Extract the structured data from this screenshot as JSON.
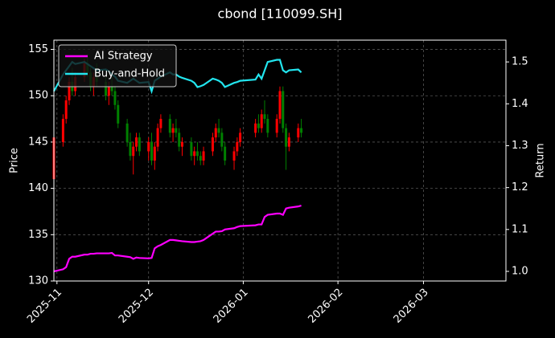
{
  "chart_data": {
    "type": "candlestick",
    "title": "cbond [110099.SH]",
    "ylabel": "Price",
    "y2label": "Return",
    "x": [
      "2025-10-31",
      "2025-11-03",
      "2025-11-04",
      "2025-11-05",
      "2025-11-06",
      "2025-11-07",
      "2025-11-10",
      "2025-11-11",
      "2025-11-12",
      "2025-11-13",
      "2025-11-14",
      "2025-11-17",
      "2025-11-18",
      "2025-11-19",
      "2025-11-20",
      "2025-11-21",
      "2025-11-24",
      "2025-11-25",
      "2025-11-26",
      "2025-11-27",
      "2025-11-28",
      "2025-12-01",
      "2025-12-02",
      "2025-12-03",
      "2025-12-04",
      "2025-12-05",
      "2025-12-08",
      "2025-12-09",
      "2025-12-10",
      "2025-12-11",
      "2025-12-12",
      "2025-12-15",
      "2025-12-16",
      "2025-12-17",
      "2025-12-18",
      "2025-12-19",
      "2025-12-22",
      "2025-12-23",
      "2025-12-24",
      "2025-12-25",
      "2025-12-26",
      "2025-12-29",
      "2025-12-30",
      "2025-12-31",
      "2026-01-05",
      "2026-01-06",
      "2026-01-07",
      "2026-01-08",
      "2026-01-09",
      "2026-01-12",
      "2026-01-13",
      "2026-01-14",
      "2026-01-15",
      "2026-01-16",
      "2026-01-19",
      "2026-01-20"
    ],
    "ohlc": {
      "up_color": "#ff0000",
      "down_color": "#008000",
      "open": [
        141,
        145,
        147.5,
        149.5,
        151.5,
        150.5,
        152,
        153.5,
        152.5,
        151,
        152,
        151.5,
        150,
        151,
        150.5,
        149,
        147,
        145,
        143.5,
        144.5,
        145.5,
        144,
        145,
        143,
        144.5,
        146.5,
        147.5,
        146,
        146.5,
        146,
        144.5,
        145,
        143.5,
        144,
        143.5,
        143,
        144,
        145.5,
        146.5,
        146,
        144.5,
        143,
        144,
        145,
        146,
        147,
        146.5,
        148,
        147.5,
        146,
        147.5,
        150.5,
        146.5,
        144.5,
        145.5,
        146.5
      ],
      "high": [
        146,
        148,
        150,
        152,
        153,
        152.5,
        154,
        154.5,
        153,
        152.5,
        153.5,
        152,
        151.5,
        152,
        151,
        149.5,
        147.5,
        146,
        145,
        146,
        146,
        145.5,
        146,
        145,
        147,
        148,
        148,
        147,
        147.5,
        146.5,
        145.5,
        145.5,
        144.5,
        145,
        144,
        144.5,
        146,
        147,
        147.5,
        146.5,
        145,
        144.5,
        145.5,
        146.5,
        147.5,
        148,
        148.5,
        149.5,
        148,
        148,
        151,
        151,
        147,
        146,
        147,
        147.5
      ],
      "low": [
        140,
        144.5,
        147,
        149,
        150,
        150,
        151.5,
        152,
        150.5,
        150,
        151,
        149.5,
        149,
        150,
        148.5,
        146.5,
        144.5,
        143,
        141.5,
        144,
        143.5,
        143,
        142.5,
        142,
        144,
        146,
        145.5,
        145,
        145.5,
        144,
        143.5,
        143,
        142.5,
        143,
        142.5,
        142.5,
        143.5,
        145,
        145.5,
        144,
        142.5,
        142,
        143.5,
        144.5,
        145.5,
        146,
        146,
        147,
        145.5,
        145.5,
        147,
        146,
        142,
        144,
        145,
        145.5
      ],
      "close": [
        145.5,
        147.5,
        149.5,
        151.5,
        150.5,
        152,
        153.5,
        152.5,
        151,
        152,
        151.5,
        150,
        151,
        150.5,
        149,
        147,
        145,
        143.5,
        144.5,
        145.5,
        144,
        145,
        143,
        144.5,
        146.5,
        147.5,
        146,
        146.5,
        146,
        144.5,
        145,
        143.5,
        144,
        143.5,
        143,
        144,
        145.5,
        146.5,
        146,
        144.5,
        143,
        144,
        145,
        146,
        147,
        146.5,
        148,
        147.5,
        146,
        147.5,
        150.5,
        146.5,
        144.5,
        145.5,
        146.5,
        146
      ]
    },
    "series": [
      {
        "name": "AI Strategy",
        "color": "#ff00ff",
        "axis": "y2",
        "values": [
          1.0,
          1.005,
          1.01,
          1.03,
          1.035,
          1.035,
          1.04,
          1.04,
          1.042,
          1.042,
          1.043,
          1.043,
          1.043,
          1.044,
          1.038,
          1.038,
          1.035,
          1.034,
          1.03,
          1.033,
          1.032,
          1.031,
          1.032,
          1.055,
          1.06,
          1.063,
          1.075,
          1.075,
          1.074,
          1.073,
          1.072,
          1.07,
          1.07,
          1.071,
          1.072,
          1.075,
          1.09,
          1.095,
          1.095,
          1.096,
          1.1,
          1.103,
          1.106,
          1.108,
          1.11,
          1.112,
          1.112,
          1.13,
          1.135,
          1.138,
          1.138,
          1.135,
          1.15,
          1.152,
          1.155,
          1.157
        ]
      },
      {
        "name": "Buy-and-Hold",
        "color": "#22e5ee",
        "axis": "y2",
        "values": [
          1.43,
          1.47,
          1.48,
          1.49,
          1.5,
          1.495,
          1.5,
          1.495,
          1.49,
          1.485,
          1.48,
          1.482,
          1.478,
          1.47,
          1.465,
          1.455,
          1.45,
          1.455,
          1.46,
          1.455,
          1.45,
          1.452,
          1.43,
          1.455,
          1.46,
          1.465,
          1.475,
          1.47,
          1.47,
          1.465,
          1.462,
          1.455,
          1.45,
          1.44,
          1.442,
          1.445,
          1.46,
          1.458,
          1.455,
          1.45,
          1.44,
          1.45,
          1.452,
          1.455,
          1.458,
          1.47,
          1.46,
          1.48,
          1.5,
          1.505,
          1.505,
          1.48,
          1.475,
          1.48,
          1.482,
          1.475
        ]
      }
    ],
    "xlim": [
      "2025-10-31",
      "2026-03-28"
    ],
    "xticks": [
      {
        "value": "2025-11-01",
        "label": "2025-11"
      },
      {
        "value": "2025-12-01",
        "label": "2025-12"
      },
      {
        "value": "2026-01-01",
        "label": "2026-01"
      },
      {
        "value": "2026-02-01",
        "label": "2026-02"
      },
      {
        "value": "2026-03-01",
        "label": "2026-03"
      }
    ],
    "ylim": [
      130,
      156
    ],
    "yticks": [
      130,
      135,
      140,
      145,
      150,
      155
    ],
    "y2lim": [
      0.977,
      1.552
    ],
    "y2ticks": [
      {
        "value": 1,
        "label": "1.0"
      },
      1.1,
      1.2,
      1.3,
      1.4,
      1.5
    ],
    "grid": true,
    "legend": "upper left"
  }
}
